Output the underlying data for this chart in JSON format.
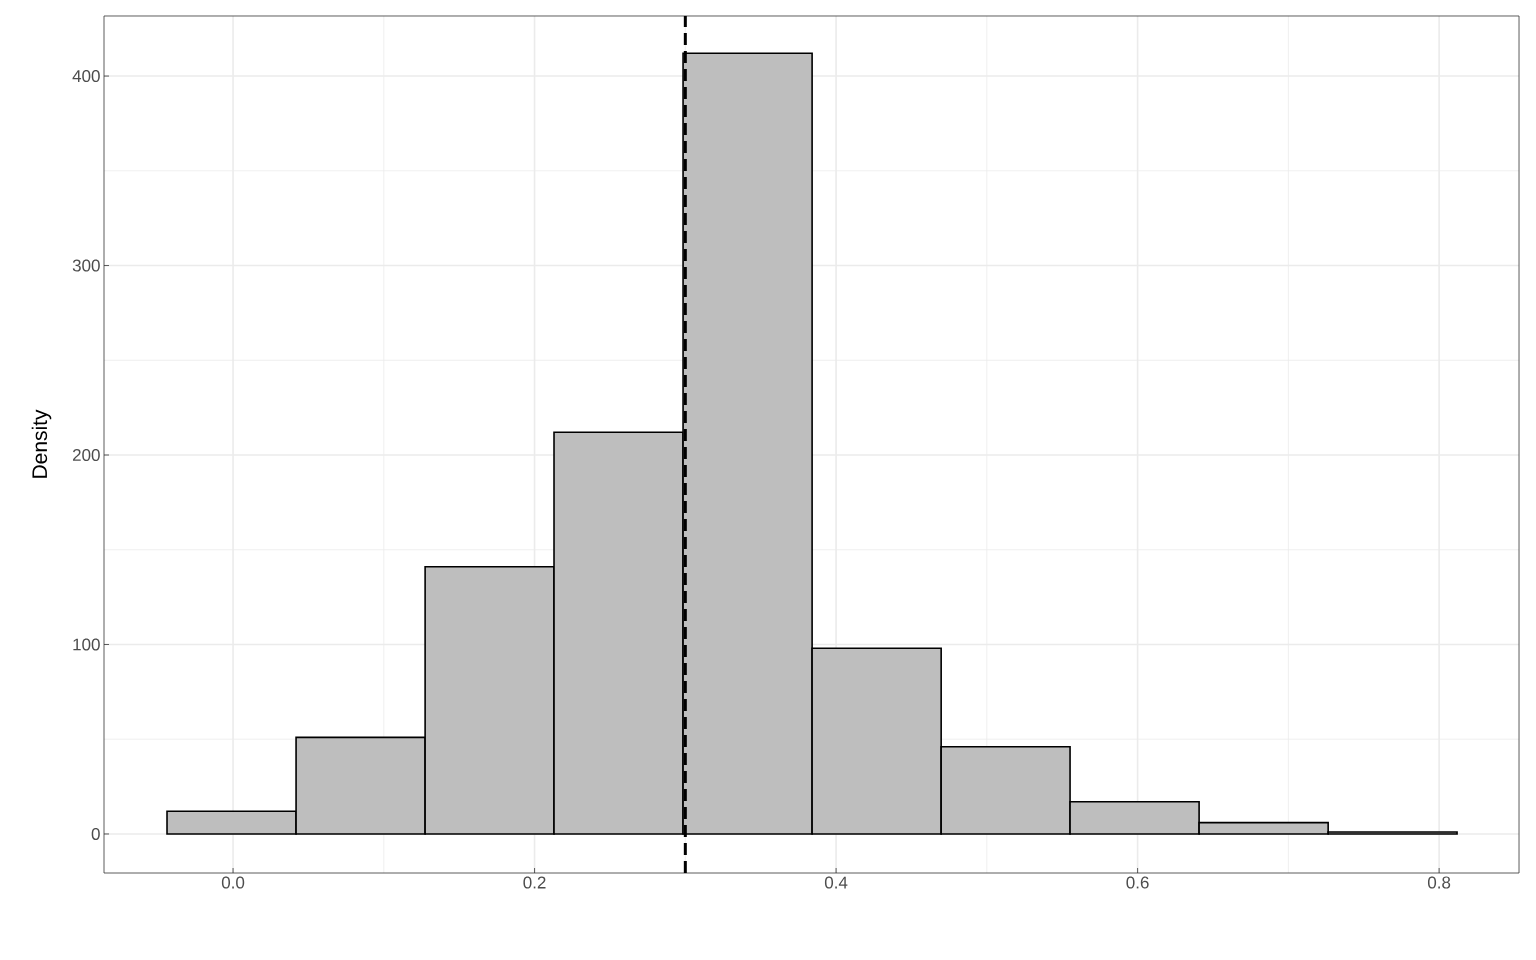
{
  "chart_data": {
    "type": "histogram",
    "ylabel": "Density",
    "bins": [
      -0.0438,
      0.0418,
      0.1274,
      0.2129,
      0.2985,
      0.3841,
      0.4697,
      0.5552,
      0.6408,
      0.7264,
      0.8119
    ],
    "values": [
      12,
      51,
      141,
      212,
      412,
      98,
      46,
      17,
      6,
      1
    ],
    "color": "#bebebe",
    "xlim": [
      -0.0856,
      0.853
    ],
    "ylim": [
      -20.6,
      431.7
    ],
    "xticks": [
      {
        "value": 0,
        "label": "0.0"
      },
      0.2,
      0.4,
      0.6,
      0.8
    ],
    "yticks": [
      0,
      100,
      200,
      300,
      400
    ],
    "ref_lines": [
      {
        "axis": "x",
        "value": 0.3,
        "color": "#000000",
        "line_style": "dashed"
      }
    ],
    "grid": true
  }
}
